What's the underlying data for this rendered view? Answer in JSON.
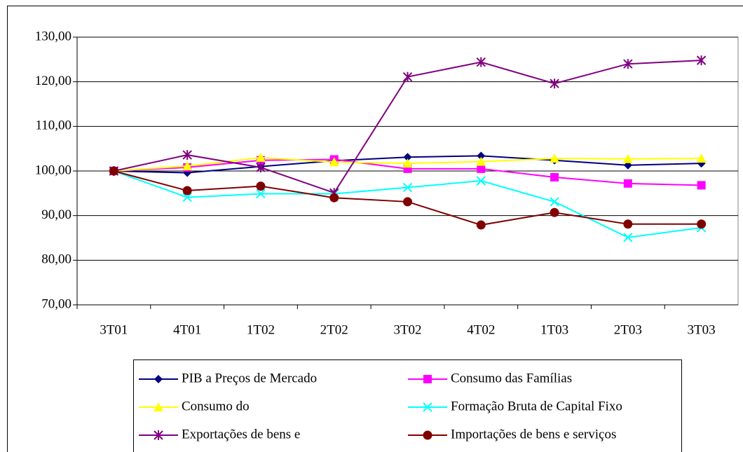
{
  "chart_data": {
    "type": "line",
    "categories": [
      "3T01",
      "4T01",
      "1T02",
      "2T02",
      "3T02",
      "4T02",
      "1T03",
      "2T03",
      "3T03"
    ],
    "series": [
      {
        "name": "PIB a Preços de Mercado",
        "color": "#000080",
        "marker": "diamond",
        "values": [
          100,
          99.6,
          101,
          102.3,
          103.1,
          103.4,
          102.4,
          101.3,
          101.7
        ]
      },
      {
        "name": "Consumo das Famílias",
        "color": "#ff00ff",
        "marker": "square",
        "values": [
          100,
          100.8,
          102.4,
          102.6,
          100.5,
          100.5,
          98.6,
          97.2,
          96.8
        ]
      },
      {
        "name": "Consumo do",
        "color": "#ffff00",
        "marker": "triangle",
        "values": [
          100,
          101.1,
          103,
          102,
          101.7,
          102.1,
          102.8,
          102.7,
          102.8
        ]
      },
      {
        "name": "Formação Bruta de Capital Fixo",
        "color": "#00ffff",
        "marker": "x",
        "values": [
          100,
          94.1,
          94.9,
          94.9,
          96.3,
          97.8,
          93.1,
          85.1,
          87.3
        ]
      },
      {
        "name": "Exportações de bens e",
        "color": "#800080",
        "marker": "star",
        "values": [
          100,
          103.6,
          100.8,
          95.1,
          121.1,
          124.4,
          119.6,
          124,
          124.8
        ]
      },
      {
        "name": "Importações de bens e serviços",
        "color": "#800000",
        "marker": "circle",
        "values": [
          100,
          95.6,
          96.6,
          94,
          93.1,
          87.9,
          90.7,
          88.1,
          88.1
        ]
      }
    ],
    "ylim": [
      70,
      130
    ],
    "yticks": [
      {
        "value": 70,
        "label": "70,00"
      },
      {
        "value": 80,
        "label": "80,00"
      },
      {
        "value": 90,
        "label": "90,00"
      },
      {
        "value": 100,
        "label": "100,00"
      },
      {
        "value": 110,
        "label": "110,00"
      },
      {
        "value": 120,
        "label": "120,00"
      },
      {
        "value": 130,
        "label": "130,00"
      }
    ],
    "grid": true
  }
}
